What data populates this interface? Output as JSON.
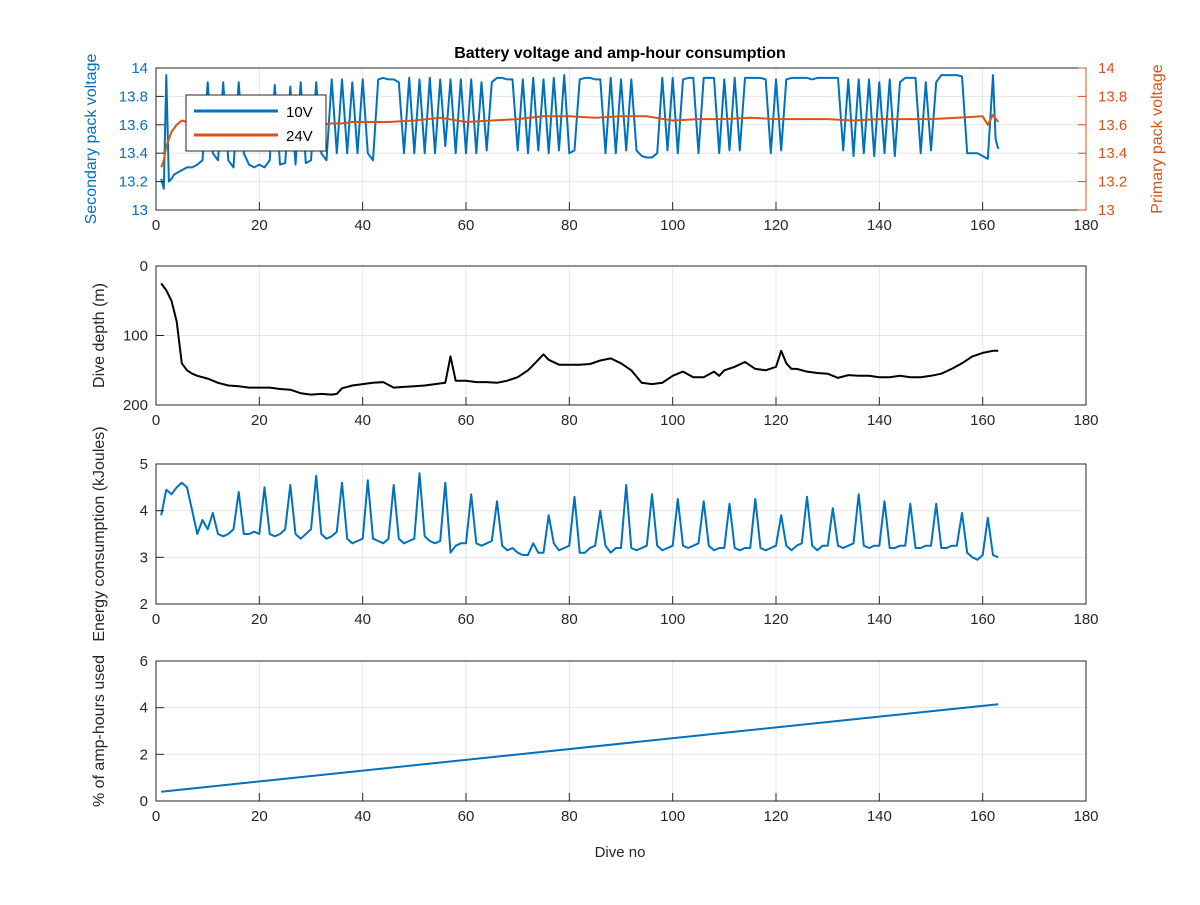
{
  "figure_title": "Battery voltage and amp-hour consumption",
  "x_label": "Dive no",
  "colors": {
    "blue": "#1f77b4",
    "orange": "#d95319",
    "black": "#000000",
    "grid": "#e6e6e6"
  },
  "chart_data": [
    {
      "type": "line",
      "title": "Battery voltage and amp-hour consumption",
      "ylabel_left": "Secondary pack voltage",
      "ylabel_right": "Primary pack voltage",
      "xlim": [
        0,
        180
      ],
      "ylim_left": [
        13,
        14
      ],
      "ylim_right": [
        13,
        14
      ],
      "x_ticks": [
        0,
        20,
        40,
        60,
        80,
        100,
        120,
        140,
        160,
        180
      ],
      "y_ticks_left": [
        13,
        13.2,
        13.4,
        13.6,
        13.8,
        14
      ],
      "y_ticks_right": [
        13,
        13.2,
        13.4,
        13.6,
        13.8,
        14
      ],
      "grid": true,
      "legend_position": "top-left",
      "series": [
        {
          "name": "10V",
          "axis": "left",
          "color": "#0072bd",
          "x": [
            1,
            1.5,
            2,
            2.5,
            3,
            3.5,
            4,
            5,
            6,
            7,
            8,
            9,
            10,
            11,
            12,
            13,
            14,
            15,
            16,
            17,
            18,
            19,
            20,
            21,
            22,
            23,
            24,
            25,
            26,
            27,
            28,
            29,
            30,
            31,
            32,
            33,
            34,
            35,
            36,
            37,
            38,
            39,
            40,
            41,
            42,
            43,
            44,
            45,
            46,
            47,
            48,
            49,
            50,
            51,
            52,
            53,
            54,
            55,
            56,
            57,
            58,
            59,
            60,
            61,
            62,
            63,
            64,
            65,
            66,
            67,
            68,
            69,
            70,
            71,
            72,
            73,
            74,
            75,
            76,
            77,
            78,
            79,
            80,
            81,
            82,
            83,
            84,
            85,
            86,
            87,
            88,
            89,
            90,
            91,
            92,
            93,
            94,
            95,
            96,
            97,
            98,
            99,
            100,
            101,
            102,
            103,
            104,
            105,
            106,
            107,
            108,
            109,
            110,
            111,
            112,
            113,
            114,
            115,
            116,
            117,
            118,
            119,
            120,
            121,
            122,
            123,
            124,
            125,
            126,
            127,
            128,
            129,
            130,
            131,
            132,
            133,
            134,
            135,
            136,
            137,
            138,
            139,
            140,
            141,
            142,
            143,
            144,
            145,
            146,
            147,
            148,
            149,
            150,
            151,
            152,
            153,
            154,
            155,
            156,
            157,
            158,
            159,
            160,
            161,
            162,
            162.5,
            163
          ],
          "values": [
            13.22,
            13.15,
            13.95,
            13.2,
            13.22,
            13.25,
            13.26,
            13.28,
            13.3,
            13.3,
            13.32,
            13.35,
            13.9,
            13.4,
            13.35,
            13.9,
            13.35,
            13.3,
            13.9,
            13.4,
            13.32,
            13.3,
            13.32,
            13.3,
            13.35,
            13.88,
            13.32,
            13.33,
            13.87,
            13.32,
            13.9,
            13.33,
            13.35,
            13.9,
            13.4,
            13.35,
            13.92,
            13.4,
            13.92,
            13.4,
            13.9,
            13.4,
            13.92,
            13.4,
            13.35,
            13.92,
            13.93,
            13.92,
            13.92,
            13.9,
            13.4,
            13.93,
            13.4,
            13.92,
            13.4,
            13.93,
            13.4,
            13.92,
            13.45,
            13.92,
            13.4,
            13.92,
            13.4,
            13.92,
            13.4,
            13.9,
            13.42,
            13.9,
            13.93,
            13.93,
            13.92,
            13.92,
            13.42,
            13.92,
            13.4,
            13.93,
            13.42,
            13.92,
            13.4,
            13.93,
            13.42,
            13.95,
            13.4,
            13.42,
            13.92,
            13.93,
            13.93,
            13.92,
            13.92,
            13.4,
            13.93,
            13.4,
            13.92,
            13.42,
            13.92,
            13.42,
            13.38,
            13.37,
            13.37,
            13.4,
            13.93,
            13.42,
            13.93,
            13.4,
            13.92,
            13.93,
            13.93,
            13.4,
            13.93,
            13.93,
            13.93,
            13.4,
            13.92,
            13.42,
            13.93,
            13.42,
            13.93,
            13.93,
            13.93,
            13.93,
            13.92,
            13.4,
            13.92,
            13.42,
            13.92,
            13.93,
            13.93,
            13.93,
            13.93,
            13.92,
            13.93,
            13.93,
            13.93,
            13.93,
            13.93,
            13.42,
            13.92,
            13.38,
            13.92,
            13.4,
            13.92,
            13.38,
            13.9,
            13.4,
            13.92,
            13.38,
            13.9,
            13.93,
            13.93,
            13.93,
            13.4,
            13.9,
            13.42,
            13.9,
            13.95,
            13.95,
            13.95,
            13.95,
            13.94,
            13.4,
            13.4,
            13.4,
            13.38,
            13.36,
            13.95,
            13.5,
            13.43
          ]
        },
        {
          "name": "24V",
          "axis": "right",
          "color": "#d95319",
          "x": [
            1,
            1.5,
            2,
            3,
            4,
            5,
            6,
            8,
            10,
            12,
            14,
            16,
            18,
            20,
            22,
            24,
            26,
            28,
            30,
            32,
            34,
            36,
            38,
            40,
            45,
            50,
            55,
            60,
            65,
            70,
            75,
            80,
            85,
            90,
            95,
            100,
            105,
            110,
            115,
            120,
            125,
            130,
            135,
            140,
            145,
            150,
            155,
            160,
            161,
            162,
            163
          ],
          "values": [
            13.3,
            13.35,
            13.45,
            13.55,
            13.6,
            13.63,
            13.62,
            13.63,
            13.62,
            13.63,
            13.62,
            13.63,
            13.62,
            13.6,
            13.62,
            13.61,
            13.6,
            13.6,
            13.6,
            13.6,
            13.61,
            13.61,
            13.62,
            13.62,
            13.62,
            13.63,
            13.65,
            13.62,
            13.63,
            13.64,
            13.66,
            13.66,
            13.65,
            13.66,
            13.66,
            13.63,
            13.64,
            13.64,
            13.65,
            13.64,
            13.64,
            13.64,
            13.63,
            13.64,
            13.64,
            13.64,
            13.65,
            13.66,
            13.6,
            13.67,
            13.62
          ]
        }
      ]
    },
    {
      "type": "line",
      "ylabel": "Dive depth (m)",
      "xlim": [
        0,
        180
      ],
      "ylim": [
        0,
        200
      ],
      "y_reversed": true,
      "x_ticks": [
        0,
        20,
        40,
        60,
        80,
        100,
        120,
        140,
        160,
        180
      ],
      "y_ticks": [
        0,
        100,
        200
      ],
      "grid": true,
      "series": [
        {
          "color": "#000000",
          "x": [
            1,
            2,
            3,
            4,
            5,
            6,
            7,
            8,
            10,
            12,
            14,
            16,
            18,
            20,
            22,
            24,
            26,
            28,
            30,
            32,
            34,
            35,
            36,
            38,
            40,
            42,
            44,
            46,
            48,
            50,
            52,
            54,
            56,
            57,
            58,
            60,
            62,
            64,
            66,
            68,
            70,
            72,
            74,
            75,
            76,
            78,
            80,
            82,
            84,
            86,
            88,
            90,
            92,
            94,
            96,
            98,
            100,
            102,
            104,
            106,
            108,
            109,
            110,
            112,
            114,
            116,
            118,
            120,
            121,
            122,
            123,
            124,
            126,
            128,
            130,
            132,
            134,
            136,
            138,
            140,
            142,
            144,
            146,
            148,
            150,
            152,
            154,
            156,
            158,
            160,
            162,
            163
          ],
          "values": [
            25,
            35,
            50,
            80,
            140,
            150,
            155,
            158,
            162,
            168,
            172,
            173,
            175,
            175,
            175,
            177,
            178,
            183,
            185,
            184,
            185,
            184,
            176,
            172,
            170,
            168,
            167,
            175,
            174,
            173,
            172,
            170,
            168,
            130,
            165,
            165,
            167,
            167,
            168,
            165,
            160,
            150,
            135,
            127,
            135,
            142,
            142,
            142,
            141,
            136,
            133,
            140,
            150,
            168,
            170,
            168,
            158,
            152,
            160,
            160,
            152,
            158,
            150,
            145,
            138,
            148,
            150,
            145,
            122,
            140,
            148,
            148,
            152,
            154,
            155,
            161,
            157,
            158,
            158,
            160,
            160,
            158,
            160,
            160,
            158,
            155,
            148,
            140,
            130,
            125,
            122,
            122
          ]
        }
      ]
    },
    {
      "type": "line",
      "ylabel": "Energy consumption (kJoules)",
      "xlim": [
        0,
        180
      ],
      "ylim": [
        2,
        5
      ],
      "x_ticks": [
        0,
        20,
        40,
        60,
        80,
        100,
        120,
        140,
        160,
        180
      ],
      "y_ticks": [
        2,
        3,
        4,
        5
      ],
      "grid": true,
      "series": [
        {
          "color": "#0072bd",
          "x": [
            1,
            2,
            3,
            4,
            5,
            6,
            7,
            8,
            9,
            10,
            11,
            12,
            13,
            14,
            15,
            16,
            17,
            18,
            19,
            20,
            21,
            22,
            23,
            24,
            25,
            26,
            27,
            28,
            29,
            30,
            31,
            32,
            33,
            34,
            35,
            36,
            37,
            38,
            39,
            40,
            41,
            42,
            43,
            44,
            45,
            46,
            47,
            48,
            49,
            50,
            51,
            52,
            53,
            54,
            55,
            56,
            57,
            58,
            59,
            60,
            61,
            62,
            63,
            64,
            65,
            66,
            67,
            68,
            69,
            70,
            71,
            72,
            73,
            74,
            75,
            76,
            77,
            78,
            79,
            80,
            81,
            82,
            83,
            84,
            85,
            86,
            87,
            88,
            89,
            90,
            91,
            92,
            93,
            94,
            95,
            96,
            97,
            98,
            99,
            100,
            101,
            102,
            103,
            104,
            105,
            106,
            107,
            108,
            109,
            110,
            111,
            112,
            113,
            114,
            115,
            116,
            117,
            118,
            119,
            120,
            121,
            122,
            123,
            124,
            125,
            126,
            127,
            128,
            129,
            130,
            131,
            132,
            133,
            134,
            135,
            136,
            137,
            138,
            139,
            140,
            141,
            142,
            143,
            144,
            145,
            146,
            147,
            148,
            149,
            150,
            151,
            152,
            153,
            154,
            155,
            156,
            157,
            158,
            159,
            160,
            161,
            162,
            163
          ],
          "values": [
            3.9,
            4.45,
            4.35,
            4.5,
            4.6,
            4.5,
            4.0,
            3.5,
            3.8,
            3.6,
            3.95,
            3.5,
            3.45,
            3.5,
            3.6,
            4.4,
            3.5,
            3.5,
            3.55,
            3.5,
            4.5,
            3.5,
            3.45,
            3.5,
            3.6,
            4.55,
            3.5,
            3.4,
            3.5,
            3.6,
            4.75,
            3.5,
            3.4,
            3.45,
            3.55,
            4.6,
            3.4,
            3.3,
            3.35,
            3.4,
            4.65,
            3.4,
            3.35,
            3.3,
            3.4,
            4.55,
            3.4,
            3.3,
            3.35,
            3.4,
            4.8,
            3.45,
            3.35,
            3.3,
            3.35,
            4.6,
            3.1,
            3.25,
            3.3,
            3.3,
            4.35,
            3.3,
            3.25,
            3.3,
            3.35,
            4.2,
            3.25,
            3.15,
            3.2,
            3.1,
            3.05,
            3.05,
            3.3,
            3.1,
            3.1,
            3.9,
            3.3,
            3.15,
            3.2,
            3.25,
            4.3,
            3.1,
            3.1,
            3.2,
            3.25,
            4.0,
            3.25,
            3.1,
            3.2,
            3.2,
            4.55,
            3.2,
            3.15,
            3.2,
            3.25,
            4.35,
            3.25,
            3.15,
            3.2,
            3.25,
            4.25,
            3.25,
            3.2,
            3.25,
            3.3,
            4.2,
            3.25,
            3.15,
            3.2,
            3.2,
            4.15,
            3.2,
            3.15,
            3.2,
            3.2,
            4.25,
            3.2,
            3.15,
            3.2,
            3.25,
            3.9,
            3.25,
            3.15,
            3.25,
            3.3,
            4.3,
            3.25,
            3.15,
            3.25,
            3.25,
            4.05,
            3.25,
            3.2,
            3.25,
            3.3,
            4.35,
            3.25,
            3.2,
            3.25,
            3.25,
            4.2,
            3.2,
            3.2,
            3.25,
            3.25,
            4.15,
            3.2,
            3.2,
            3.25,
            3.25,
            4.15,
            3.2,
            3.2,
            3.25,
            3.25,
            3.95,
            3.1,
            3.0,
            2.95,
            3.05,
            3.85,
            3.05,
            3.0
          ]
        }
      ]
    },
    {
      "type": "line",
      "ylabel": "% of amp-hours used",
      "xlabel": "Dive no",
      "xlim": [
        0,
        180
      ],
      "ylim": [
        0,
        6
      ],
      "x_ticks": [
        0,
        20,
        40,
        60,
        80,
        100,
        120,
        140,
        160,
        180
      ],
      "y_ticks": [
        0,
        2,
        4,
        6
      ],
      "grid": true,
      "series": [
        {
          "color": "#0072bd",
          "x": [
            1,
            163
          ],
          "values": [
            0.4,
            4.15
          ]
        }
      ]
    }
  ]
}
